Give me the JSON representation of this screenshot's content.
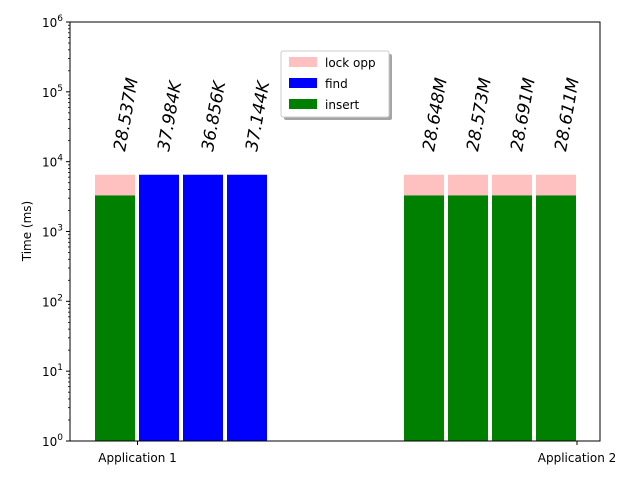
{
  "chart_data": {
    "type": "bar",
    "stacked": true,
    "ylabel": "Time (ms)",
    "yscale": "log",
    "ylim": [
      1,
      1000000
    ],
    "grid": false,
    "legend": "top-center",
    "categories": [
      "Application 1",
      "Application 2"
    ],
    "y_ticks": [
      {
        "value": 1,
        "base": "10",
        "exp": "0"
      },
      {
        "value": 10,
        "base": "10",
        "exp": "1"
      },
      {
        "value": 100,
        "base": "10",
        "exp": "2"
      },
      {
        "value": 1000,
        "base": "10",
        "exp": "3"
      },
      {
        "value": 10000,
        "base": "10",
        "exp": "4"
      },
      {
        "value": 100000,
        "base": "10",
        "exp": "5"
      },
      {
        "value": 1000000,
        "base": "10",
        "exp": "6"
      }
    ],
    "series": [
      {
        "name": "lock opp",
        "color": "#ffc0c0"
      },
      {
        "name": "find",
        "color": "#0000ff"
      },
      {
        "name": "insert",
        "color": "#008000"
      }
    ],
    "bars": [
      {
        "category": "Application 1",
        "label": "28.537M",
        "segments": [
          {
            "series": "insert",
            "from": 1,
            "to": 3300
          },
          {
            "series": "lock opp",
            "from": 3300,
            "to": 6500
          }
        ]
      },
      {
        "category": "Application 1",
        "label": "37.984K",
        "segments": [
          {
            "series": "find",
            "from": 1,
            "to": 6500
          }
        ]
      },
      {
        "category": "Application 1",
        "label": "36.856K",
        "segments": [
          {
            "series": "find",
            "from": 1,
            "to": 6500
          }
        ]
      },
      {
        "category": "Application 1",
        "label": "37.144K",
        "segments": [
          {
            "series": "find",
            "from": 1,
            "to": 6500
          }
        ]
      },
      {
        "category": "Application 2",
        "label": "28.648M",
        "segments": [
          {
            "series": "insert",
            "from": 1,
            "to": 3300
          },
          {
            "series": "lock opp",
            "from": 3300,
            "to": 6500
          }
        ]
      },
      {
        "category": "Application 2",
        "label": "28.573M",
        "segments": [
          {
            "series": "insert",
            "from": 1,
            "to": 3300
          },
          {
            "series": "lock opp",
            "from": 3300,
            "to": 6500
          }
        ]
      },
      {
        "category": "Application 2",
        "label": "28.691M",
        "segments": [
          {
            "series": "insert",
            "from": 1,
            "to": 3300
          },
          {
            "series": "lock opp",
            "from": 3300,
            "to": 6500
          }
        ]
      },
      {
        "category": "Application 2",
        "label": "28.611M",
        "segments": [
          {
            "series": "insert",
            "from": 1,
            "to": 3300
          },
          {
            "series": "lock opp",
            "from": 3300,
            "to": 6500
          }
        ]
      }
    ]
  }
}
